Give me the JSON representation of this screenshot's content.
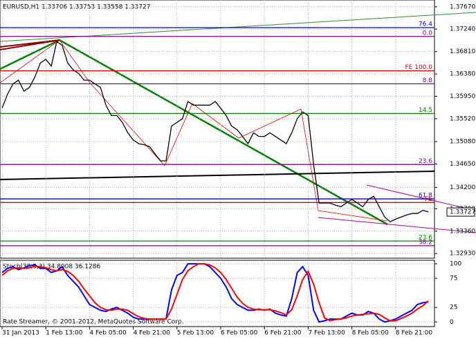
{
  "chart_data": [
    {
      "type": "line",
      "title": "EURUSD,H1  1.33706 1.33753 1.33558 1.33727",
      "categories": [
        "31 Jan 2013",
        null,
        null,
        null,
        null,
        null,
        null,
        null,
        "1 Feb 13:00",
        null,
        null,
        null,
        null,
        null,
        null,
        null,
        "4 Feb 05:00",
        null,
        null,
        null,
        null,
        null,
        null,
        null,
        "4 Feb 21:00",
        null,
        null,
        null,
        null,
        null,
        null,
        null,
        "5 Feb 13:00",
        null,
        null,
        null,
        null,
        null,
        null,
        null,
        "6 Feb 05:00",
        null,
        null,
        null,
        null,
        null,
        null,
        null,
        "6 Feb 21:00",
        null,
        null,
        null,
        null,
        null,
        null,
        null,
        "7 Feb 13:00",
        null,
        null,
        null,
        null,
        null,
        null,
        null,
        "8 Feb 05:00",
        null,
        null,
        null,
        null,
        null,
        null,
        null,
        "8 Feb 21:00",
        null,
        null,
        null,
        null,
        null,
        null
      ],
      "color": "#000000",
      "values": [
        1.3572,
        1.3599,
        1.3619,
        1.3626,
        1.3605,
        1.3612,
        1.3632,
        1.3659,
        1.3666,
        1.3653,
        1.37,
        1.3693,
        1.3659,
        1.3646,
        1.3639,
        1.3626,
        1.3626,
        1.3619,
        1.3612,
        1.3578,
        1.3558,
        1.3558,
        1.3545,
        1.3525,
        1.3511,
        1.3504,
        1.3502,
        1.3498,
        1.3484,
        1.3471,
        1.3471,
        1.3538,
        1.3545,
        1.3552,
        1.3585,
        1.3578,
        1.3578,
        1.3578,
        1.3578,
        1.3585,
        1.3572,
        1.3558,
        1.3538,
        1.3531,
        1.3518,
        1.3504,
        1.3525,
        1.3518,
        1.3518,
        1.3525,
        1.3518,
        1.3511,
        1.3504,
        1.3525,
        1.3552,
        1.3565,
        1.3558,
        1.3464,
        1.339,
        1.339,
        1.339,
        1.3386,
        1.3383,
        1.339,
        1.3397,
        1.339,
        1.3383,
        1.3397,
        1.3403,
        1.3383,
        1.3363,
        1.3354,
        1.3359,
        1.3363,
        1.3367,
        1.337,
        1.337,
        1.3376,
        1.3373
      ],
      "ylim": [
        1.3284,
        1.378
      ],
      "yticks": [
        {
          "value": 1.3767,
          "label": "1.37670"
        },
        {
          "value": 1.3724,
          "label": "1.37240"
        },
        {
          "value": 1.3681,
          "label": "1.36810"
        },
        {
          "value": 1.3638,
          "label": "1.36380"
        },
        {
          "value": 1.3595,
          "label": "1.35950"
        },
        {
          "value": 1.3552,
          "label": "1.35520"
        },
        {
          "value": 1.3508,
          "label": "1.35080"
        },
        {
          "value": 1.3465,
          "label": "1.34650"
        },
        {
          "value": 1.342,
          "label": "1.34200"
        },
        {
          "value": 1.3379,
          "label": "1.33790"
        },
        {
          "value": 1.3336,
          "label": "1.33360"
        },
        {
          "value": 1.3293,
          "label": "1.32930"
        }
      ],
      "grid": true,
      "levels": [
        {
          "value": 1.3727,
          "label": "76.4",
          "color": "#0000cc"
        },
        {
          "value": 1.371,
          "label": "0.0",
          "color": "#800080"
        },
        {
          "value": 1.3644,
          "label": "FE 100.0",
          "color": "#cc0000"
        },
        {
          "value": 1.3619,
          "label": "8.8",
          "color": "#800080"
        },
        {
          "value": 1.3562,
          "label": "14.5",
          "color": "#008000"
        },
        {
          "value": 1.3464,
          "label": "23.6",
          "color": "#800080"
        },
        {
          "value": 1.3398,
          "label": "61.8",
          "color": "#0000cc"
        },
        {
          "value": 1.3391,
          "label": "FE",
          "color": "#cc0000"
        },
        {
          "value": 1.3317,
          "label": "23.6",
          "color": "#008000"
        },
        {
          "value": 1.3308,
          "label": "38.2",
          "color": "#800080"
        }
      ],
      "price_label": {
        "value": 1.33727,
        "label": "1.33727"
      }
    },
    {
      "type": "line",
      "title": "Stoch(30,3,3) 34.8008 36.1286",
      "series": [
        {
          "color": "#0000ff",
          "values": [
            85,
            92,
            95,
            90,
            93,
            97,
            98,
            92,
            92,
            85,
            88,
            95,
            80,
            70,
            60,
            45,
            30,
            25,
            20,
            18,
            22,
            25,
            20,
            15,
            8,
            5,
            5,
            5,
            5,
            5,
            5,
            55,
            80,
            85,
            100,
            100,
            100,
            100,
            95,
            85,
            75,
            60,
            40,
            30,
            25,
            20,
            20,
            22,
            20,
            22,
            15,
            12,
            10,
            40,
            85,
            95,
            80,
            20,
            0,
            2,
            5,
            5,
            5,
            10,
            15,
            12,
            12,
            18,
            15,
            5,
            0,
            2,
            5,
            10,
            15,
            20,
            30,
            33,
            34.8
          ]
        },
        {
          "color": "#ff0000",
          "values": [
            80,
            88,
            92,
            93,
            92,
            93,
            96,
            95,
            93,
            90,
            88,
            90,
            87,
            80,
            70,
            57,
            45,
            33,
            25,
            21,
            20,
            22,
            22,
            20,
            14,
            9,
            6,
            5,
            5,
            5,
            5,
            22,
            47,
            73,
            88,
            95,
            100,
            100,
            98,
            93,
            85,
            73,
            58,
            43,
            32,
            25,
            22,
            21,
            21,
            21,
            19,
            16,
            12,
            21,
            45,
            73,
            87,
            65,
            33,
            7,
            2,
            4,
            5,
            7,
            10,
            12,
            13,
            14,
            15,
            13,
            7,
            2,
            2,
            6,
            10,
            15,
            22,
            28,
            36.1
          ]
        }
      ],
      "ylim": [
        -8,
        106
      ],
      "yticks": [
        0,
        25,
        75,
        100
      ],
      "grid": true
    }
  ],
  "footer": "Rate Streamer, © 2001-2012, MetaQuotes Software Corp."
}
